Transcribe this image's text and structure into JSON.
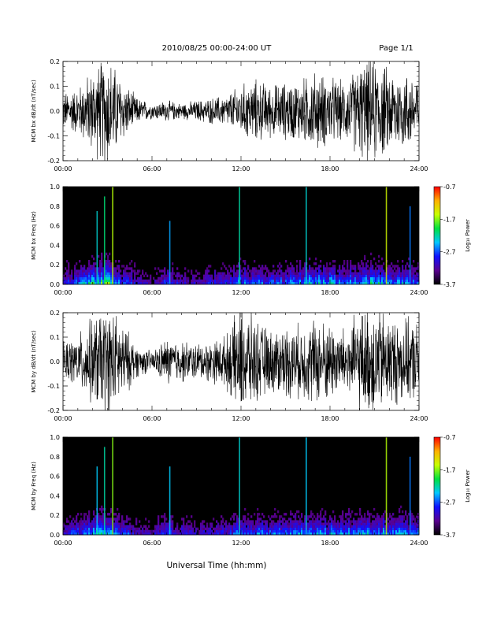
{
  "header": {
    "title": "2010/08/25  00:00-24:00 UT",
    "page_label": "Page 1/1"
  },
  "footer": {
    "xlabel": "Universal Time (hh:mm)"
  },
  "colorbar": {
    "label": "Log₁₀ Power",
    "ticks": [
      "-0.7",
      "-1.7",
      "-2.7",
      "-3.7"
    ],
    "range": [
      -3.7,
      -0.7
    ],
    "colors": [
      "#000000",
      "#5a0090",
      "#1010ff",
      "#00c8ff",
      "#00e040",
      "#c8ff00",
      "#ffb000",
      "#ff0000"
    ]
  },
  "time_ticks": [
    "00:00",
    "06:00",
    "12:00",
    "18:00",
    "24:00"
  ],
  "chart_data": [
    {
      "type": "line",
      "ylabel": "MCM bx dB/dt (nT/sec)",
      "xlim": [
        0,
        24
      ],
      "ylim": [
        -0.2,
        0.2
      ],
      "yticks": [
        "0.2",
        "0.1",
        "0.0",
        "-0.1",
        "-0.2"
      ],
      "xticks": [
        "00:00",
        "06:00",
        "12:00",
        "18:00",
        "24:00"
      ],
      "x": [
        0,
        1,
        2,
        3,
        4,
        5,
        6,
        7,
        8,
        9,
        10,
        11,
        12,
        13,
        14,
        15,
        16,
        17,
        18,
        19,
        20,
        21,
        22,
        23,
        24
      ],
      "amplitude": [
        0.07,
        0.09,
        0.16,
        0.22,
        0.12,
        0.05,
        0.03,
        0.04,
        0.03,
        0.04,
        0.05,
        0.06,
        0.1,
        0.12,
        0.1,
        0.11,
        0.12,
        0.15,
        0.13,
        0.11,
        0.18,
        0.2,
        0.16,
        0.15,
        0.14
      ],
      "line_color": "#000000"
    },
    {
      "type": "heatmap",
      "ylabel": "MCM bx Freq (Hz)",
      "xlim": [
        0,
        24
      ],
      "ylim": [
        0,
        1.0
      ],
      "yticks": [
        "1.0",
        "0.8",
        "0.6",
        "0.4",
        "0.2",
        "0.0"
      ],
      "xticks": [
        "00:00",
        "06:00",
        "12:00",
        "18:00",
        "24:00"
      ],
      "x": [
        0,
        1,
        2,
        3,
        4,
        5,
        6,
        7,
        8,
        9,
        10,
        11,
        12,
        13,
        14,
        15,
        16,
        17,
        18,
        19,
        20,
        21,
        22,
        23,
        24
      ],
      "activity": [
        0.35,
        0.45,
        0.7,
        0.85,
        0.45,
        0.3,
        0.25,
        0.4,
        0.3,
        0.3,
        0.35,
        0.4,
        0.55,
        0.5,
        0.45,
        0.5,
        0.55,
        0.65,
        0.6,
        0.55,
        0.6,
        0.65,
        0.6,
        0.55,
        0.5
      ],
      "lines": [
        {
          "x": 2.3,
          "top": 0.75,
          "value": -2.3
        },
        {
          "x": 2.8,
          "top": 0.9,
          "value": -2.1
        },
        {
          "x": 3.35,
          "top": 1.0,
          "value": -1.6
        },
        {
          "x": 7.2,
          "top": 0.65,
          "value": -2.5
        },
        {
          "x": 11.9,
          "top": 1.0,
          "value": -2.2
        },
        {
          "x": 16.4,
          "top": 1.0,
          "value": -2.3
        },
        {
          "x": 21.8,
          "top": 1.0,
          "value": -1.5
        },
        {
          "x": 23.4,
          "top": 0.8,
          "value": -2.6
        }
      ]
    },
    {
      "type": "line",
      "ylabel": "MCM by dB/dt (nT/sec)",
      "xlim": [
        0,
        24
      ],
      "ylim": [
        -0.2,
        0.2
      ],
      "yticks": [
        "0.2",
        "0.1",
        "0.0",
        "-0.1",
        "-0.2"
      ],
      "xticks": [
        "00:00",
        "06:00",
        "12:00",
        "18:00",
        "24:00"
      ],
      "x": [
        0,
        1,
        2,
        3,
        4,
        5,
        6,
        7,
        8,
        9,
        10,
        11,
        12,
        13,
        14,
        15,
        16,
        17,
        18,
        19,
        20,
        21,
        22,
        23,
        24
      ],
      "amplitude": [
        0.07,
        0.1,
        0.17,
        0.22,
        0.15,
        0.06,
        0.04,
        0.09,
        0.08,
        0.07,
        0.08,
        0.1,
        0.22,
        0.16,
        0.12,
        0.14,
        0.14,
        0.17,
        0.15,
        0.13,
        0.19,
        0.22,
        0.18,
        0.16,
        0.15
      ],
      "line_color": "#000000"
    },
    {
      "type": "heatmap",
      "ylabel": "MCM by Freq (Hz)",
      "xlim": [
        0,
        24
      ],
      "ylim": [
        0,
        1.0
      ],
      "yticks": [
        "1.0",
        "0.8",
        "0.6",
        "0.4",
        "0.2",
        "0.0"
      ],
      "xticks": [
        "00:00",
        "06:00",
        "12:00",
        "18:00",
        "24:00"
      ],
      "x": [
        0,
        1,
        2,
        3,
        4,
        5,
        6,
        7,
        8,
        9,
        10,
        11,
        12,
        13,
        14,
        15,
        16,
        17,
        18,
        19,
        20,
        21,
        22,
        23,
        24
      ],
      "activity": [
        0.35,
        0.45,
        0.65,
        0.8,
        0.45,
        0.3,
        0.25,
        0.45,
        0.35,
        0.3,
        0.35,
        0.4,
        0.55,
        0.5,
        0.45,
        0.5,
        0.55,
        0.6,
        0.55,
        0.55,
        0.6,
        0.6,
        0.6,
        0.55,
        0.5
      ],
      "lines": [
        {
          "x": 2.3,
          "top": 0.7,
          "value": -2.4
        },
        {
          "x": 2.8,
          "top": 0.9,
          "value": -2.2
        },
        {
          "x": 3.35,
          "top": 1.0,
          "value": -1.7
        },
        {
          "x": 7.2,
          "top": 0.7,
          "value": -2.4
        },
        {
          "x": 11.9,
          "top": 1.0,
          "value": -2.3
        },
        {
          "x": 16.4,
          "top": 1.0,
          "value": -2.4
        },
        {
          "x": 21.8,
          "top": 1.0,
          "value": -1.6
        },
        {
          "x": 23.4,
          "top": 0.8,
          "value": -2.6
        }
      ]
    }
  ]
}
